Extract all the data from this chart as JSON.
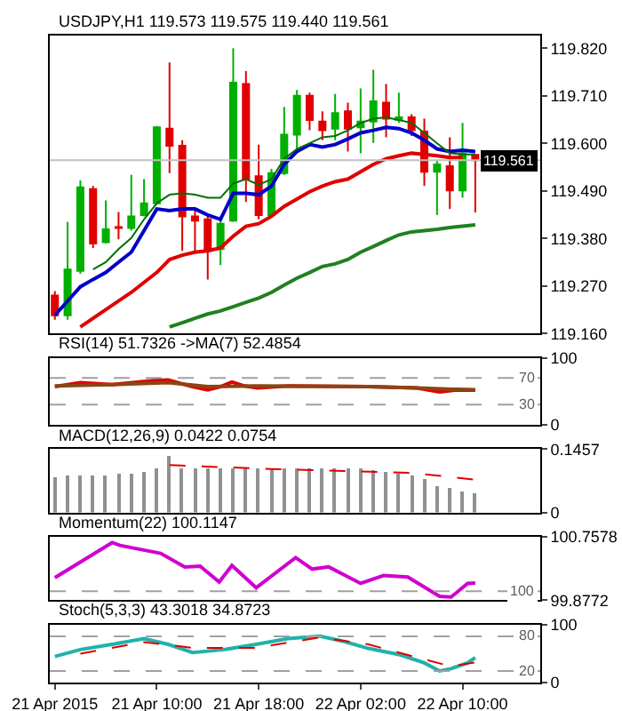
{
  "chart_data": [
    {
      "type": "candlestick",
      "title": "USDJPY,H1 119.573 119.575 119.440 119.561",
      "x": [
        "2015-04-21T02:00",
        "2015-04-21T03:00",
        "2015-04-21T04:00",
        "2015-04-21T05:00",
        "2015-04-21T06:00",
        "2015-04-21T07:00",
        "2015-04-21T08:00",
        "2015-04-21T09:00",
        "2015-04-21T10:00",
        "2015-04-21T11:00",
        "2015-04-21T12:00",
        "2015-04-21T13:00",
        "2015-04-21T14:00",
        "2015-04-21T15:00",
        "2015-04-21T16:00",
        "2015-04-21T17:00",
        "2015-04-21T18:00",
        "2015-04-21T19:00",
        "2015-04-21T20:00",
        "2015-04-21T21:00",
        "2015-04-21T22:00",
        "2015-04-21T23:00",
        "2015-04-22T00:00",
        "2015-04-22T01:00",
        "2015-04-22T02:00",
        "2015-04-22T03:00",
        "2015-04-22T04:00",
        "2015-04-22T05:00",
        "2015-04-22T06:00",
        "2015-04-22T07:00",
        "2015-04-22T08:00",
        "2015-04-22T09:00",
        "2015-04-22T10:00",
        "2015-04-22T11:00"
      ],
      "ohlc": [
        [
          119.248,
          119.258,
          119.192,
          119.202
        ],
        [
          119.202,
          119.418,
          119.192,
          119.308
        ],
        [
          119.305,
          119.514,
          119.298,
          119.498
        ],
        [
          119.494,
          119.501,
          119.358,
          119.368
        ],
        [
          119.371,
          119.468,
          119.368,
          119.401
        ],
        [
          119.406,
          119.441,
          119.378,
          119.404
        ],
        [
          119.404,
          119.527,
          119.398,
          119.431
        ],
        [
          119.434,
          119.517,
          119.431,
          119.461
        ],
        [
          119.461,
          119.64,
          119.458,
          119.637
        ],
        [
          119.634,
          119.787,
          119.531,
          119.594
        ],
        [
          119.594,
          119.607,
          119.351,
          119.431
        ],
        [
          119.431,
          119.444,
          119.351,
          119.421
        ],
        [
          119.424,
          119.434,
          119.285,
          119.351
        ],
        [
          119.355,
          119.431,
          119.318,
          119.414
        ],
        [
          119.421,
          119.82,
          119.418,
          119.74
        ],
        [
          119.737,
          119.767,
          119.464,
          119.517
        ],
        [
          119.524,
          119.597,
          119.424,
          119.434
        ],
        [
          119.434,
          119.541,
          119.431,
          119.531
        ],
        [
          119.531,
          119.684,
          119.527,
          119.62
        ],
        [
          119.62,
          119.723,
          119.584,
          119.71
        ],
        [
          119.71,
          119.717,
          119.63,
          119.654
        ],
        [
          119.65,
          119.674,
          119.607,
          119.63
        ],
        [
          119.634,
          119.714,
          119.607,
          119.67
        ],
        [
          119.674,
          119.694,
          119.581,
          119.634
        ],
        [
          119.637,
          119.727,
          119.577,
          119.65
        ],
        [
          119.65,
          119.77,
          119.601,
          119.697
        ],
        [
          119.694,
          119.737,
          119.614,
          119.657
        ],
        [
          119.654,
          119.717,
          119.647,
          119.66
        ],
        [
          119.66,
          119.667,
          119.617,
          119.63
        ],
        [
          119.627,
          119.657,
          119.501,
          119.534
        ],
        [
          119.534,
          119.561,
          119.434,
          119.551
        ],
        [
          119.547,
          119.614,
          119.448,
          119.491
        ],
        [
          119.491,
          119.647,
          119.474,
          119.577
        ],
        [
          119.573,
          119.575,
          119.44,
          119.561
        ]
      ],
      "colors": [
        "#e00000",
        "#00b000",
        "#00b000",
        "#e00000",
        "#00b000",
        "#e00000",
        "#00b000",
        "#00b000",
        "#00b000",
        "#e00000",
        "#e00000",
        "#e00000",
        "#e00000",
        "#00b000",
        "#00b000",
        "#e00000",
        "#e00000",
        "#00b000",
        "#00b000",
        "#00b000",
        "#e00000",
        "#e00000",
        "#00b000",
        "#e00000",
        "#00b000",
        "#00b000",
        "#e00000",
        "#00b000",
        "#e00000",
        "#e00000",
        "#00b000",
        "#e00000",
        "#00b000",
        "#e00000"
      ],
      "series": [
        {
          "type": "line",
          "color": "#0000c8",
          "values": [
            119.202,
            119.235,
            119.268,
            119.285,
            119.301,
            119.325,
            119.348,
            119.398,
            119.448,
            119.444,
            119.448,
            119.448,
            119.434,
            119.424,
            119.484,
            119.484,
            119.481,
            119.501,
            119.551,
            119.581,
            119.597,
            119.591,
            119.597,
            119.61,
            119.624,
            119.63,
            119.637,
            119.634,
            119.624,
            119.607,
            119.587,
            119.581,
            119.584,
            119.581
          ]
        },
        {
          "type": "line",
          "color": "#007000",
          "values": [
            null,
            null,
            null,
            119.308,
            119.325,
            119.355,
            119.381,
            119.424,
            119.461,
            119.481,
            119.484,
            119.481,
            119.474,
            119.474,
            119.507,
            119.517,
            119.504,
            119.517,
            119.564,
            119.587,
            119.6,
            119.614,
            119.617,
            119.63,
            119.647,
            119.657,
            119.66,
            119.654,
            119.647,
            119.624,
            119.6,
            119.577,
            119.574,
            119.574
          ]
        },
        {
          "type": "line",
          "color": "#e00000",
          "values": [
            null,
            null,
            119.175,
            119.195,
            119.215,
            119.235,
            119.255,
            119.278,
            119.301,
            119.331,
            119.341,
            119.348,
            119.351,
            119.358,
            119.385,
            119.408,
            119.414,
            119.431,
            119.454,
            119.471,
            119.488,
            119.501,
            119.511,
            119.517,
            119.534,
            119.551,
            119.564,
            119.571,
            119.577,
            119.574,
            119.571,
            119.567,
            119.567,
            null
          ]
        },
        {
          "type": "line",
          "color": "#208020",
          "values": [
            null,
            null,
            null,
            null,
            null,
            null,
            null,
            null,
            null,
            119.175,
            119.185,
            119.195,
            119.205,
            119.212,
            119.222,
            119.232,
            119.242,
            119.255,
            119.272,
            119.288,
            119.301,
            119.315,
            119.321,
            119.331,
            119.348,
            119.361,
            119.375,
            119.388,
            119.395,
            119.398,
            119.401,
            119.405,
            119.408,
            119.411
          ]
        }
      ],
      "xlim": [
        "2015-04-21T01:36",
        "2015-04-22T16:06"
      ],
      "ylim": [
        119.16,
        119.85
      ],
      "yticks": [
        {
          "value": 119.16,
          "label": "119.160"
        },
        {
          "value": 119.27,
          "label": "119.270"
        },
        {
          "value": 119.38,
          "label": "119.380"
        },
        {
          "value": 119.49,
          "label": "119.490"
        },
        {
          "value": 119.6,
          "label": "119.600"
        },
        {
          "value": 119.71,
          "label": "119.710"
        },
        {
          "value": 119.82,
          "label": "119.820"
        }
      ],
      "ref_lines": [
        {
          "axis": "y",
          "value": 119.561,
          "label": "119.561",
          "color": "#c0c0c0",
          "line_style": "solid"
        }
      ],
      "tick_labels": "y"
    },
    {
      "type": "line",
      "title": "RSI(14) 51.7326 ->MA(7) 52.4854",
      "series": [
        {
          "color": "#e00000",
          "x": [
            "2015-04-21T02:00",
            "2015-04-21T04:00",
            "2015-04-21T06:30",
            "2015-04-21T09:42",
            "2015-04-21T10:54",
            "2015-04-21T12:48",
            "2015-04-21T14:00",
            "2015-04-21T15:00",
            "2015-04-21T15:54",
            "2015-04-21T16:54",
            "2015-04-21T17:54",
            "2015-04-21T20:18",
            "2015-04-22T02:36",
            "2015-04-22T06:24",
            "2015-04-22T08:12",
            "2015-04-22T09:30",
            "2015-04-22T11:00"
          ],
          "values": [
            57,
            63,
            60,
            66,
            67,
            57,
            52,
            57,
            64,
            58,
            55,
            58,
            57,
            55,
            49,
            52,
            51.7326
          ]
        },
        {
          "color": "#8b4513",
          "x": [
            "2015-04-21T02:00",
            "2015-04-21T06:30",
            "2015-04-21T10:54",
            "2015-04-21T14:00",
            "2015-04-21T17:54",
            "2015-04-22T02:36",
            "2015-04-22T06:24",
            "2015-04-22T09:30",
            "2015-04-22T11:00"
          ],
          "values": [
            58,
            60,
            63,
            57,
            58,
            57,
            55,
            53,
            52.4854
          ]
        }
      ],
      "xlim": [
        "2015-04-21T01:36",
        "2015-04-22T16:06"
      ],
      "ylim": [
        0,
        100
      ],
      "yticks": [
        0,
        100
      ],
      "ref_lines": [
        {
          "axis": "y",
          "value": 70,
          "label": "70",
          "color": "#a0a0a0",
          "line_style": "dashed"
        },
        {
          "axis": "y",
          "value": 30,
          "label": "30",
          "color": "#a0a0a0",
          "line_style": "dashed"
        }
      ],
      "tick_labels": "y"
    },
    {
      "type": "bar",
      "title": "MACD(12,26,9) 0.0422 0.0754",
      "x": [
        "2015-04-21T02:00",
        "2015-04-21T03:00",
        "2015-04-21T04:00",
        "2015-04-21T05:00",
        "2015-04-21T06:00",
        "2015-04-21T07:00",
        "2015-04-21T08:00",
        "2015-04-21T09:00",
        "2015-04-21T10:00",
        "2015-04-21T11:00",
        "2015-04-21T12:00",
        "2015-04-21T13:00",
        "2015-04-21T14:00",
        "2015-04-21T15:00",
        "2015-04-21T16:00",
        "2015-04-21T17:00",
        "2015-04-21T18:00",
        "2015-04-21T19:00",
        "2015-04-21T20:00",
        "2015-04-21T21:00",
        "2015-04-21T22:00",
        "2015-04-21T23:00",
        "2015-04-22T00:00",
        "2015-04-22T01:00",
        "2015-04-22T02:00",
        "2015-04-22T03:00",
        "2015-04-22T04:00",
        "2015-04-22T05:00",
        "2015-04-22T06:00",
        "2015-04-22T07:00",
        "2015-04-22T08:00",
        "2015-04-22T09:00",
        "2015-04-22T10:00",
        "2015-04-22T11:00"
      ],
      "series": [
        {
          "color": "#909090",
          "values": [
            0.082,
            0.083,
            0.084,
            0.085,
            0.086,
            0.088,
            0.09,
            0.093,
            0.1,
            0.128,
            0.1,
            0.1,
            0.1,
            0.1,
            0.1,
            0.1,
            0.1,
            0.1,
            0.1,
            0.1,
            0.1,
            0.1,
            0.1,
            0.1,
            0.1,
            0.095,
            0.092,
            0.09,
            0.085,
            0.075,
            0.06,
            0.055,
            0.048,
            0.0422
          ]
        },
        {
          "type": "line",
          "color": "#e00000",
          "line_style": "dashed",
          "x": [
            "2015-04-21T11:00",
            "2015-04-21T19:00",
            "2015-04-22T06:00",
            "2015-04-22T09:00",
            "2015-04-22T11:00"
          ],
          "values": [
            0.109,
            0.1,
            0.091,
            0.082,
            0.0754
          ]
        }
      ],
      "xlim": [
        "2015-04-21T01:36",
        "2015-04-22T16:06"
      ],
      "ylim": [
        0,
        0.1457
      ],
      "yticks": [
        0,
        0.1457
      ],
      "tick_labels": "y"
    },
    {
      "type": "line",
      "title": "Momentum(22) 100.1147",
      "series": [
        {
          "color": "#d000d0",
          "x": [
            "2015-04-21T02:00",
            "2015-04-21T06:30",
            "2015-04-21T07:06",
            "2015-04-21T10:18",
            "2015-04-21T12:12",
            "2015-04-21T13:24",
            "2015-04-21T14:54",
            "2015-04-21T15:54",
            "2015-04-21T17:48",
            "2015-04-21T20:54",
            "2015-04-21T22:12",
            "2015-04-21T23:30",
            "2015-04-22T02:00",
            "2015-04-22T03:48",
            "2015-04-22T05:42",
            "2015-04-22T08:12",
            "2015-04-22T09:06",
            "2015-04-22T10:24",
            "2015-04-22T11:00"
          ],
          "values": [
            100.19,
            100.68,
            100.64,
            100.53,
            100.34,
            100.35,
            100.13,
            100.36,
            100.05,
            100.47,
            100.31,
            100.34,
            100.11,
            100.22,
            100.2,
            99.93,
            99.92,
            100.11,
            100.1147
          ]
        }
      ],
      "xlim": [
        "2015-04-21T01:36",
        "2015-04-22T16:06"
      ],
      "ylim": [
        99.8772,
        100.7578
      ],
      "yticks": [
        99.8772,
        100.7578
      ],
      "ref_lines": [
        {
          "axis": "y",
          "value": 100,
          "label": "100",
          "color": "#a0a0a0",
          "line_style": "dashed"
        }
      ],
      "tick_labels": "y"
    },
    {
      "type": "line",
      "title": "Stoch(5,3,3) 43.3018 34.8723",
      "series": [
        {
          "color": "#20b2aa",
          "x": [
            "2015-04-21T02:00",
            "2015-04-21T04:00",
            "2015-04-21T06:30",
            "2015-04-21T09:00",
            "2015-04-21T10:54",
            "2015-04-21T12:48",
            "2015-04-21T15:18",
            "2015-04-21T17:48",
            "2015-04-21T20:18",
            "2015-04-21T22:48",
            "2015-04-22T00:42",
            "2015-04-22T02:36",
            "2015-04-22T05:06",
            "2015-04-22T07:00",
            "2015-04-22T08:12",
            "2015-04-22T09:06",
            "2015-04-22T10:24",
            "2015-04-22T11:00"
          ],
          "values": [
            45,
            57,
            66,
            76,
            66,
            52,
            57,
            66,
            76,
            80,
            71,
            59,
            48,
            34,
            20,
            24,
            34,
            43.3018
          ]
        },
        {
          "color": "#e00000",
          "line_style": "dashed",
          "x": [
            "2015-04-21T04:00",
            "2015-04-21T09:00",
            "2015-04-21T12:48",
            "2015-04-21T17:48",
            "2015-04-21T22:48",
            "2015-04-22T02:36",
            "2015-04-22T07:00",
            "2015-04-22T09:06",
            "2015-04-22T11:00"
          ],
          "values": [
            50,
            70,
            60,
            60,
            78,
            66,
            40,
            28,
            34.8723
          ]
        }
      ],
      "xlim": [
        "2015-04-21T01:36",
        "2015-04-22T16:06"
      ],
      "ylim": [
        0,
        100
      ],
      "yticks": [
        0,
        100
      ],
      "xticks": [
        {
          "value": "2015-04-21T02:00",
          "label": "21 Apr 2015"
        },
        {
          "value": "2015-04-21T10:00",
          "label": "21 Apr 10:00"
        },
        {
          "value": "2015-04-21T18:00",
          "label": "21 Apr 18:00"
        },
        {
          "value": "2015-04-22T02:00",
          "label": "22 Apr 02:00"
        },
        {
          "value": "2015-04-22T10:00",
          "label": "22 Apr 10:00"
        }
      ],
      "ref_lines": [
        {
          "axis": "y",
          "value": 80,
          "label": "80",
          "color": "#a0a0a0",
          "line_style": "dashed"
        },
        {
          "axis": "y",
          "value": 20,
          "label": "20",
          "color": "#a0a0a0",
          "line_style": "dashed"
        }
      ]
    }
  ]
}
